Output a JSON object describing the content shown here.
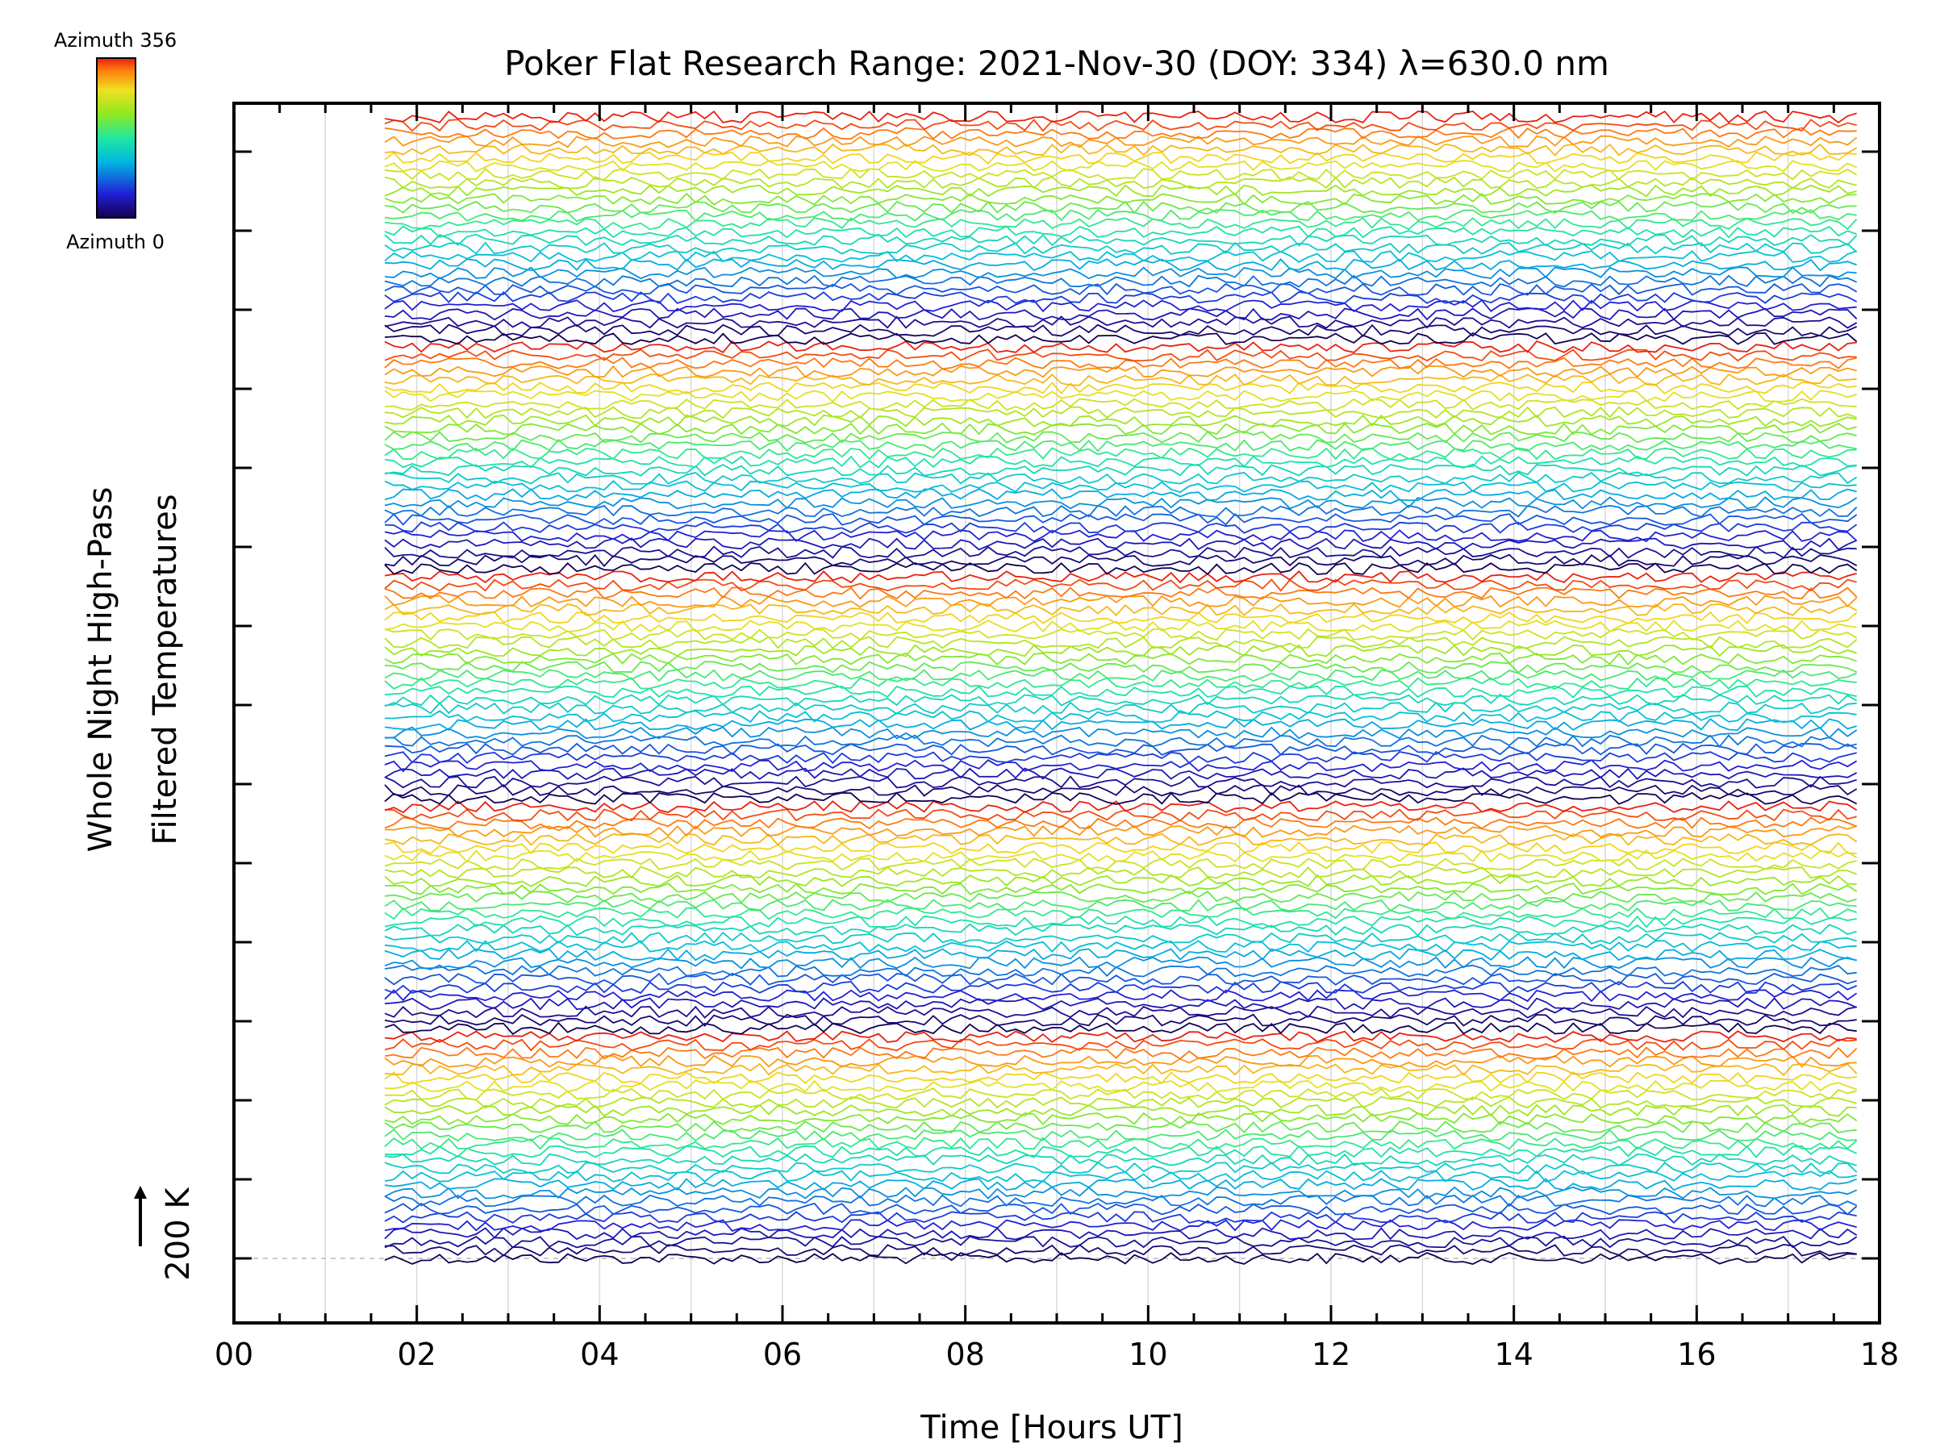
{
  "chart_data": {
    "type": "line",
    "title": "Poker Flat Research Range: 2021-Nov-30 (DOY: 334) λ=630.0 nm",
    "xlabel": "Time [Hours UT]",
    "ylabel_line1": "Whole Night High-Pass",
    "ylabel_line2": "Filtered Temperatures",
    "scale_bar_label": "200 K",
    "scale_bar_kelvin": 200,
    "xlim": [
      0,
      18
    ],
    "x_tick_labels": [
      "00",
      "02",
      "04",
      "06",
      "08",
      "10",
      "12",
      "14",
      "16",
      "18"
    ],
    "x_tick_values": [
      0,
      2,
      4,
      6,
      8,
      10,
      12,
      14,
      16,
      18
    ],
    "data_start_hour": 1.65,
    "data_end_hour": 17.75,
    "sample_interval_hours": 0.1,
    "series_count": 140,
    "series_note": "Stacked high-pass filtered temperature traces, one per azimuth bin; line color encodes azimuth",
    "colorbar": {
      "top_label": "Azimuth 356",
      "bottom_label": "Azimuth 0",
      "min": 0,
      "max": 356,
      "colormap": "rainbow"
    },
    "grid": true,
    "grid_color": "#d9d9d9"
  }
}
